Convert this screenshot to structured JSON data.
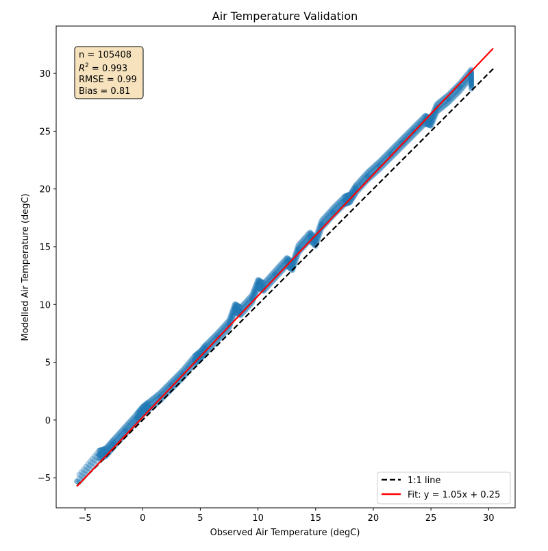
{
  "chart_data": {
    "type": "scatter",
    "title": "Air Temperature Validation",
    "xlabel": "Observed Air Temperature (degC)",
    "ylabel": "Modelled Air Temperature (degC)",
    "xlim": [
      -7.5,
      32.3
    ],
    "ylim": [
      -7.6,
      34.1
    ],
    "xticks": [
      -5,
      0,
      5,
      10,
      15,
      20,
      25,
      30
    ],
    "yticks": [
      -5,
      0,
      5,
      10,
      15,
      20,
      25,
      30
    ],
    "grid": false,
    "point_color": "#1f77b4",
    "stats": {
      "n": "n = 105408",
      "r2_prefix": "R",
      "r2_value": " = 0.993",
      "rmse": "RMSE = 0.99",
      "bias": "Bias = 0.81"
    },
    "lines": [
      {
        "name": "1:1 line",
        "color": "#000000",
        "style": "dashed",
        "x": [
          -5.7,
          30.4
        ],
        "y": [
          -5.7,
          30.4
        ]
      },
      {
        "name": "Fit: y = 1.05x + 0.25",
        "color": "#ff0000",
        "style": "solid",
        "x": [
          -5.7,
          30.4
        ],
        "y": [
          -5.74,
          32.17
        ]
      }
    ],
    "legend_placement": "lower-right",
    "points": [
      [
        -5.7,
        -5.3
      ],
      [
        -3.8,
        -3.0
      ],
      [
        -3.2,
        -2.8
      ],
      [
        -2.5,
        -2.0
      ],
      [
        -1.5,
        -0.9
      ],
      [
        -0.5,
        0.2
      ],
      [
        0,
        0.8
      ],
      [
        0.5,
        1.2
      ],
      [
        1.5,
        2.0
      ],
      [
        2.5,
        3.0
      ],
      [
        3.5,
        4.0
      ],
      [
        4.5,
        5.2
      ],
      [
        5.5,
        6.2
      ],
      [
        6.5,
        7.2
      ],
      [
        7.5,
        8.3
      ],
      [
        8.5,
        9.4
      ],
      [
        9.5,
        10.5
      ],
      [
        10.5,
        11.5
      ],
      [
        11.5,
        12.6
      ],
      [
        12.5,
        13.7
      ],
      [
        13.5,
        14.8
      ],
      [
        14.5,
        15.9
      ],
      [
        15.5,
        16.9
      ],
      [
        16.5,
        18.0
      ],
      [
        17.5,
        19.0
      ],
      [
        18.5,
        20.0
      ],
      [
        19.5,
        21.1
      ],
      [
        20.5,
        22.0
      ],
      [
        21.5,
        23.0
      ],
      [
        22.5,
        24.0
      ],
      [
        23.5,
        25.0
      ],
      [
        24.5,
        26.0
      ],
      [
        25.5,
        27.0
      ],
      [
        26.5,
        27.8
      ],
      [
        27.5,
        28.8
      ],
      [
        28.5,
        30.0
      ],
      [
        10,
        11.8
      ],
      [
        8,
        9.7
      ],
      [
        15,
        15.4
      ],
      [
        18,
        19.2
      ],
      [
        28.5,
        29.0
      ],
      [
        25,
        25.8
      ],
      [
        5,
        5.6
      ],
      [
        13,
        13.3
      ]
    ]
  }
}
